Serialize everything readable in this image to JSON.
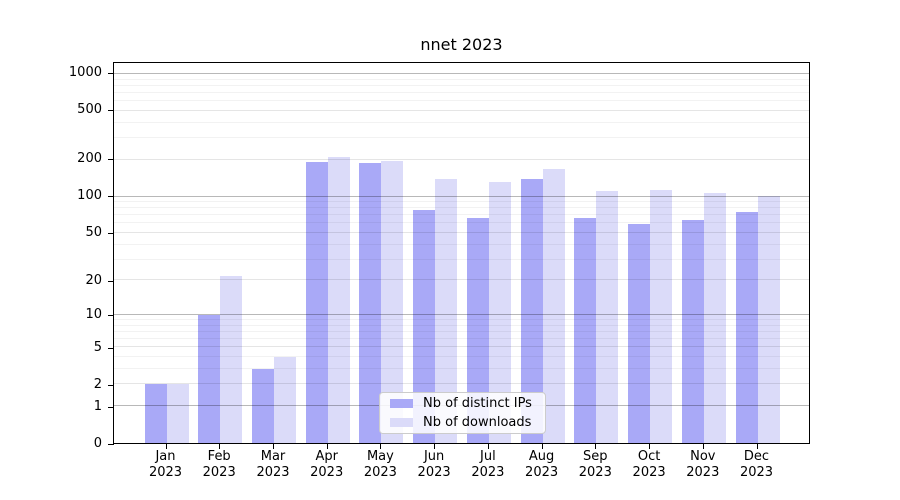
{
  "chart_data": {
    "type": "bar",
    "title": "nnet 2023",
    "categories": [
      "Jan",
      "Feb",
      "Mar",
      "Apr",
      "May",
      "Jun",
      "Jul",
      "Aug",
      "Sep",
      "Oct",
      "Nov",
      "Dec"
    ],
    "x_year": "2023",
    "series": [
      {
        "name": "Nb of distinct IPs",
        "color": "#a9a9f7",
        "values": [
          2,
          10,
          3,
          190,
          188,
          78,
          67,
          140,
          67,
          59,
          64,
          75
        ]
      },
      {
        "name": "Nb of downloads",
        "color": "#dbdbf9",
        "values": [
          2,
          22,
          4,
          210,
          197,
          140,
          131,
          168,
          111,
          114,
          107,
          101
        ]
      }
    ],
    "y_axis": {
      "scale": "log1p",
      "ticks": [
        0,
        1,
        2,
        5,
        10,
        20,
        50,
        100,
        200,
        500,
        1000
      ],
      "minor_gridlines": [
        3,
        4,
        6,
        7,
        8,
        9,
        30,
        40,
        60,
        70,
        80,
        90,
        300,
        400,
        600,
        700,
        800,
        900
      ],
      "max": 1228
    },
    "grid": true,
    "legend_position": "lower-center",
    "colors": {
      "grid_pow10": "rgba(0,0,0,0.28)",
      "grid_major": "rgba(0,0,0,0.10)",
      "grid_minor": "rgba(0,0,0,0.05)",
      "axis": "#000000",
      "background": "#ffffff"
    }
  }
}
